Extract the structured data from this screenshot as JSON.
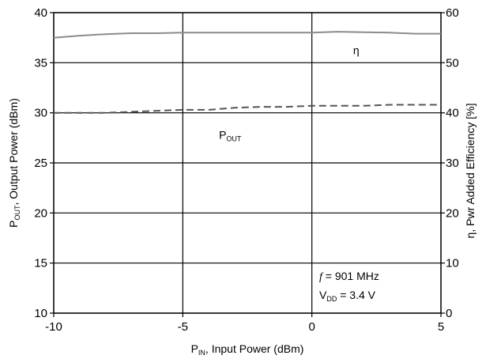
{
  "chart_data": {
    "type": "line",
    "x": [
      -10,
      -9,
      -8,
      -7,
      -6,
      -5,
      -4,
      -3,
      -2,
      -1,
      0,
      1,
      2,
      3,
      4,
      5
    ],
    "xlim": [
      -10,
      5
    ],
    "xticks": [
      "-10",
      "-5",
      "0",
      "5"
    ],
    "xlabel": {
      "main": "P",
      "sub": "IN",
      "rest": ", Input Power (dBm)"
    },
    "ylim_left": [
      10,
      40
    ],
    "yticks_left": [
      "10",
      "15",
      "20",
      "25",
      "30",
      "35",
      "40"
    ],
    "ylabel_left": {
      "main": "P",
      "sub": "OUT",
      "rest": ", Output Power (dBm)"
    },
    "ylim_right": [
      0,
      60
    ],
    "yticks_right": [
      "0",
      "10",
      "20",
      "30",
      "40",
      "50",
      "60"
    ],
    "ylabel_right": "η, Pwr Added Efficiency [%]",
    "grid": true,
    "series": [
      {
        "name": "η",
        "axis": "right",
        "color": "#8c8c8c",
        "style": "solid",
        "values": [
          55.0,
          55.4,
          55.7,
          55.9,
          55.9,
          56.0,
          56.0,
          56.0,
          56.0,
          56.0,
          56.0,
          56.2,
          56.1,
          56.0,
          55.8,
          55.8
        ]
      },
      {
        "name": "P",
        "name_sub": "OUT",
        "axis": "left",
        "color": "#555555",
        "style": "dashed",
        "values": [
          30.0,
          30.0,
          30.0,
          30.1,
          30.2,
          30.3,
          30.3,
          30.5,
          30.6,
          30.6,
          30.7,
          30.7,
          30.7,
          30.8,
          30.8,
          30.8
        ]
      }
    ],
    "annotations": [
      {
        "label": "f",
        "text": " = 901 MHz"
      },
      {
        "label": "V",
        "sub": "DD",
        "text": " = 3.4 V"
      }
    ],
    "series_labels": [
      {
        "series": "η",
        "x": 1.6,
        "y_right": 52.5
      },
      {
        "series": "P_OUT",
        "x": -3.6,
        "y_left": 27.8
      }
    ]
  }
}
